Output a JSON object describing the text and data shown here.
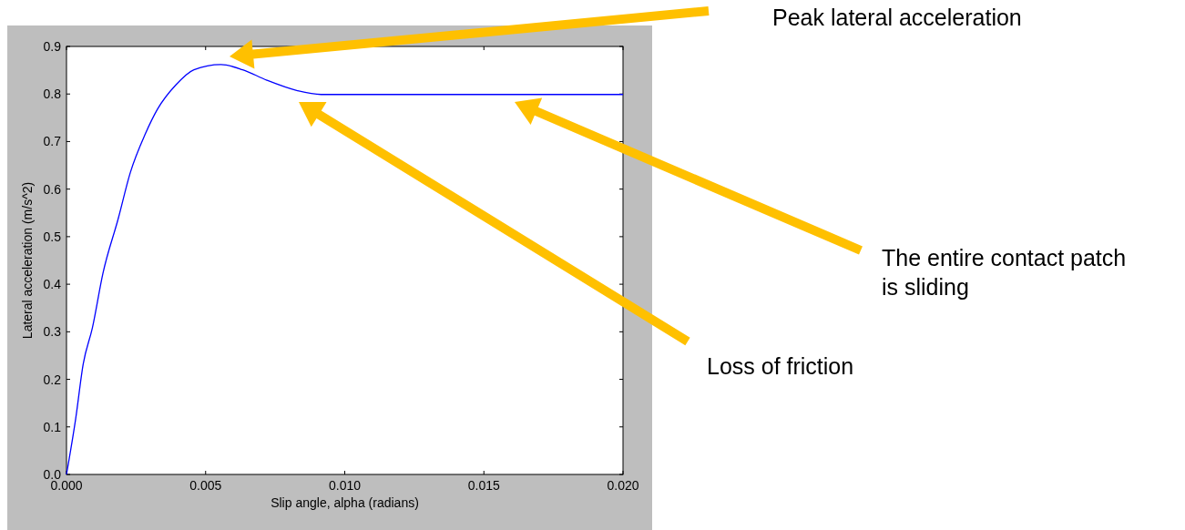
{
  "chart_data": {
    "type": "line",
    "xlabel": "Slip angle, alpha (radians)",
    "ylabel": "Lateral acceleration (m/s^2)",
    "x": [
      0,
      0.00033,
      0.0006,
      0.00093,
      0.00131,
      0.00186,
      0.00229,
      0.00284,
      0.00327,
      0.00393,
      0.00458,
      0.00555,
      0.00633,
      0.0072,
      0.0083,
      0.00915,
      0.012,
      0.016,
      0.02
    ],
    "series": [
      {
        "color": "#0000ff",
        "values": [
          0,
          0.117,
          0.232,
          0.308,
          0.423,
          0.538,
          0.634,
          0.717,
          0.768,
          0.819,
          0.851,
          0.862,
          0.851,
          0.829,
          0.807,
          0.799,
          0.799,
          0.799,
          0.799
        ]
      }
    ],
    "xlim": [
      0,
      0.02
    ],
    "xticks": [
      {
        "value": 0,
        "label": "0.000"
      },
      {
        "value": 0.005,
        "label": "0.005"
      },
      {
        "value": 0.01,
        "label": "0.010"
      },
      {
        "value": 0.015,
        "label": "0.015"
      },
      {
        "value": 0.02,
        "label": "0.020"
      }
    ],
    "ylim": [
      0,
      0.9
    ],
    "yticks": [
      {
        "value": 0,
        "label": "0.0"
      },
      0.1,
      0.2,
      0.3,
      0.4,
      0.5,
      0.6,
      0.7,
      0.8,
      0.9
    ],
    "grid": false,
    "marker": "none",
    "line_style": "solid",
    "annotations": [
      "Peak lateral acceleration",
      "The entire contact patch is sliding",
      "Loss of friction"
    ]
  }
}
